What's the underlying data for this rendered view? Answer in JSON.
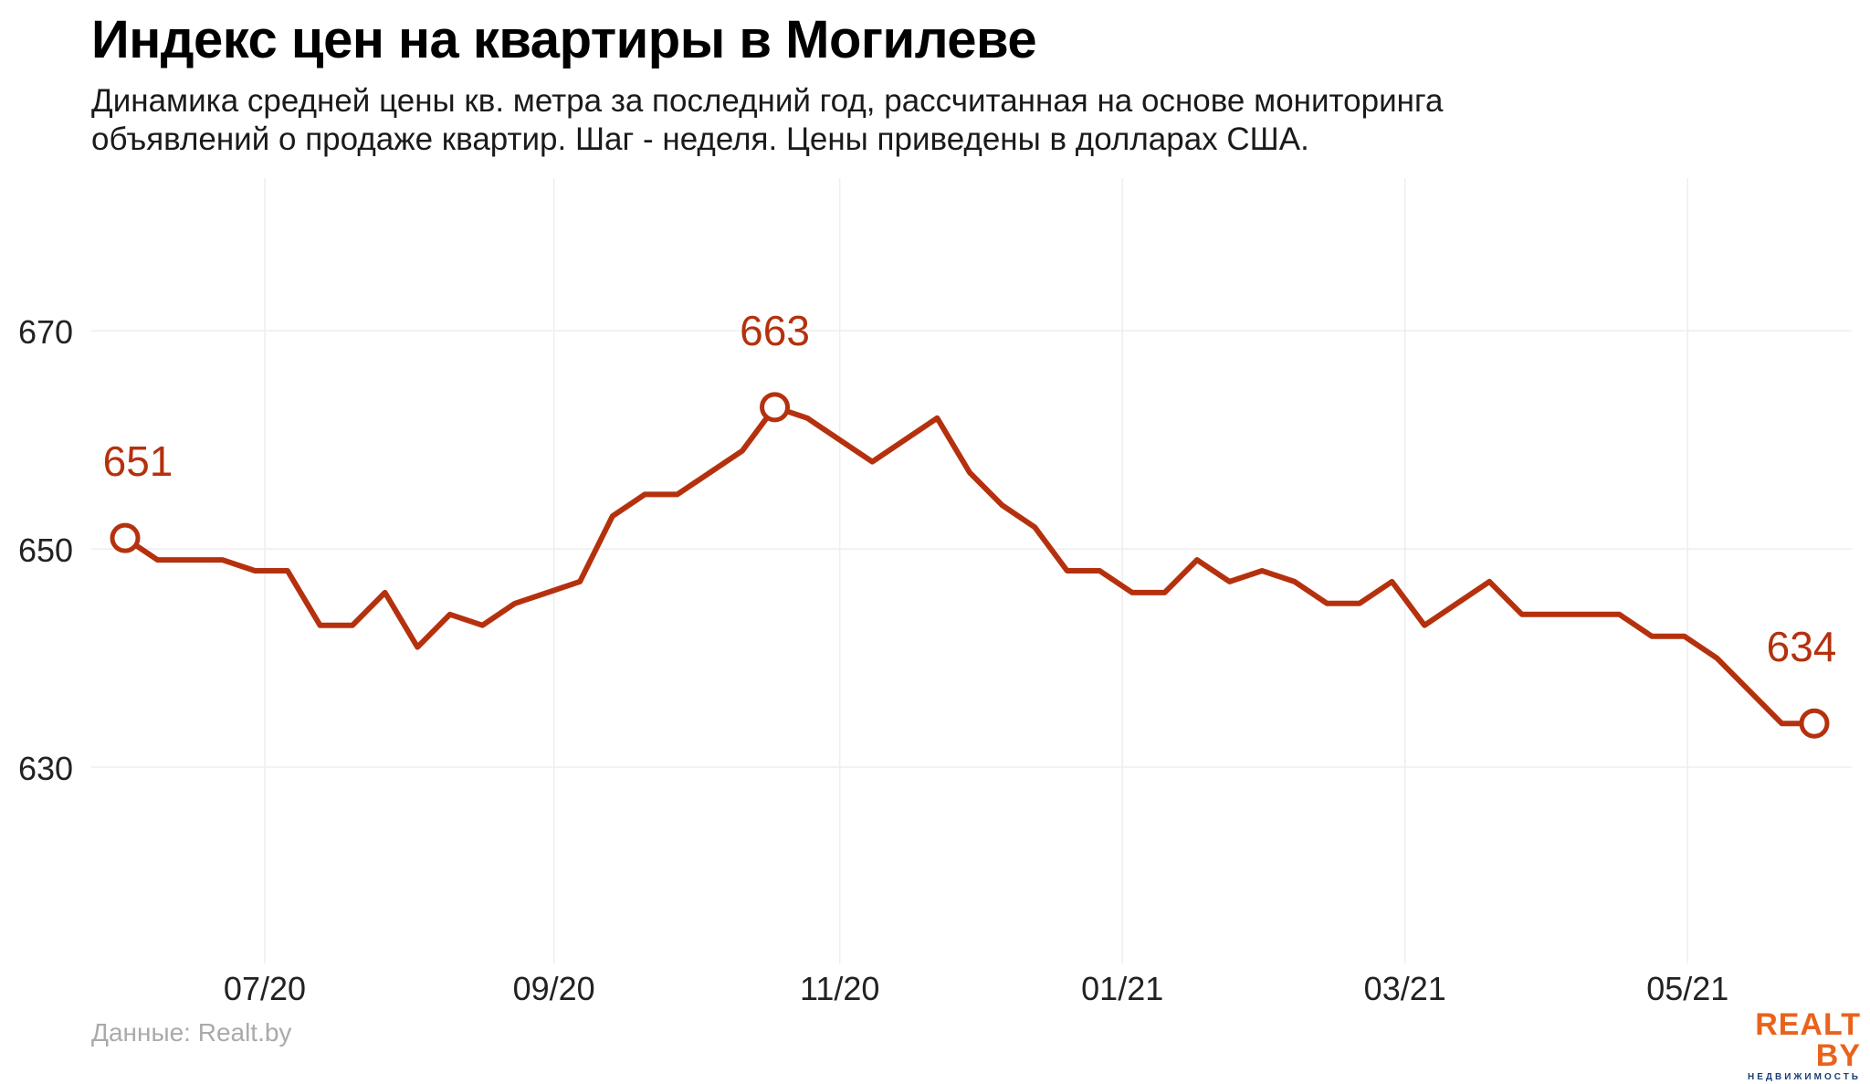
{
  "header": {
    "title": "Индекс цен на квартиры в Могилеве",
    "subtitle_line1": "Динамика средней цены кв. метра за последний год, рассчитанная на основе мониторинга",
    "subtitle_line2": "объявлений о продаже квартир. Шаг - неделя. Цены приведены в долларах США."
  },
  "footer": {
    "source": "Данные: Realt.by",
    "logo_main": "REALT BY",
    "logo_sub": "НЕДВИЖИМОСТЬ"
  },
  "colors": {
    "line": "#b5310e",
    "grid": "#eeeeee",
    "axis_text": "#222222",
    "logo_orange": "#e8631c",
    "logo_blue": "#1a3d7c"
  },
  "chart_data": {
    "type": "line",
    "title": "Индекс цен на квартиры в Могилеве",
    "xlabel": "",
    "ylabel": "",
    "ylim": [
      612,
      684
    ],
    "y_ticks": [
      630,
      650,
      670
    ],
    "x_ticks": [
      "07/20",
      "09/20",
      "11/20",
      "01/21",
      "03/21",
      "05/21"
    ],
    "x_tick_week_index": [
      4.3,
      13.2,
      22.0,
      30.7,
      39.4,
      48.1
    ],
    "grid": true,
    "legend": "none",
    "series": [
      {
        "values": [
          651,
          649,
          649,
          649,
          648,
          648,
          643,
          643,
          646,
          641,
          644,
          643,
          645,
          646,
          647,
          653,
          655,
          655,
          657,
          659,
          663,
          662,
          660,
          658,
          660,
          662,
          657,
          654,
          652,
          648,
          648,
          646,
          646,
          649,
          647,
          648,
          647,
          645,
          645,
          647,
          643,
          645,
          647,
          644,
          644,
          644,
          644,
          642,
          642,
          640,
          637,
          634,
          634
        ]
      }
    ],
    "annotations": [
      {
        "index": 0,
        "label": "651"
      },
      {
        "index": 20,
        "label": "663"
      },
      {
        "index": 52,
        "label": "634"
      }
    ]
  }
}
